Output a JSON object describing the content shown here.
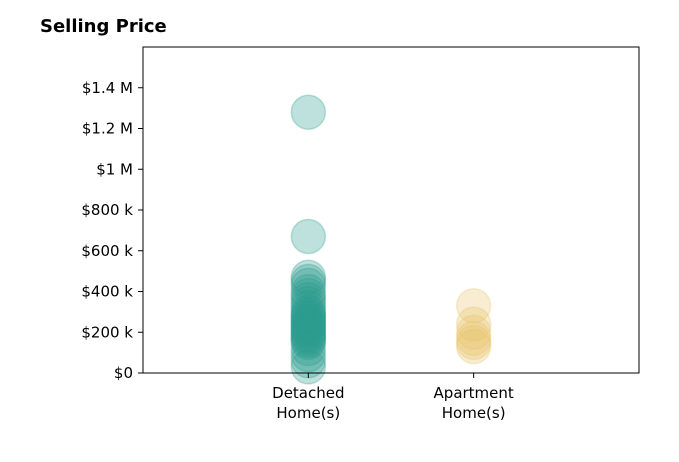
{
  "chart_data": {
    "type": "scatter",
    "title": "Selling Price",
    "categories": [
      {
        "lines": [
          "Detached",
          "Home(s)"
        ],
        "color": "#2a9d8f"
      },
      {
        "lines": [
          "Apartment",
          "Home(s)"
        ],
        "color": "#e9c46a"
      }
    ],
    "y_ticks": [
      {
        "value": 0,
        "label": "$0"
      },
      {
        "value": 200000,
        "label": "$200 k"
      },
      {
        "value": 400000,
        "label": "$400 k"
      },
      {
        "value": 600000,
        "label": "$600 k"
      },
      {
        "value": 800000,
        "label": "$800 k"
      },
      {
        "value": 1000000,
        "label": "$1 M"
      },
      {
        "value": 1200000,
        "label": "$1.2 M"
      },
      {
        "value": 1400000,
        "label": "$1.4 M"
      }
    ],
    "ylim": [
      0,
      1600000
    ],
    "xlim": [
      -1,
      2
    ],
    "grid": false,
    "marker_opacity": 0.3,
    "series": [
      {
        "category": 0,
        "values": [
          1280000,
          670000,
          470000,
          450000,
          430000,
          400000,
          380000,
          360000,
          340000,
          320000,
          300000,
          290000,
          280000,
          270000,
          260000,
          250000,
          240000,
          230000,
          220000,
          210000,
          200000,
          190000,
          180000,
          170000,
          160000,
          150000,
          120000,
          90000,
          60000,
          30000
        ]
      },
      {
        "category": 1,
        "values": [
          330000,
          240000,
          200000,
          170000,
          150000,
          130000
        ]
      }
    ]
  }
}
